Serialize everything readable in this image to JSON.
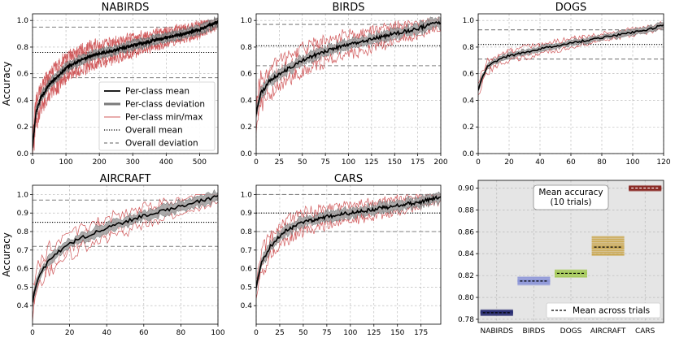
{
  "chart_data": [
    {
      "id": "nabirds",
      "type": "line",
      "title": "NABIRDS",
      "xlabel": "",
      "ylabel": "Accuracy",
      "xlim": [
        0,
        555
      ],
      "ylim": [
        0,
        1.05
      ],
      "xticks": [
        0,
        100,
        200,
        300,
        400,
        500
      ],
      "yticks": [
        0.0,
        0.2,
        0.4,
        0.6,
        0.8,
        1.0
      ],
      "grid": true,
      "n_classes": 555,
      "mean_curve": {
        "x": [
          0,
          10,
          25,
          50,
          100,
          150,
          200,
          250,
          300,
          350,
          400,
          450,
          500,
          555
        ],
        "y": [
          0.05,
          0.3,
          0.42,
          0.52,
          0.64,
          0.71,
          0.75,
          0.78,
          0.81,
          0.84,
          0.87,
          0.9,
          0.93,
          0.99
        ]
      },
      "deviation_band": 0.03,
      "minmax_spread": 0.12,
      "overall_mean": 0.76,
      "overall_deviation": [
        0.57,
        0.95
      ],
      "legend": {
        "location": "center-right",
        "entries": [
          "Per-class mean",
          "Per-class deviation",
          "Per-class min/max",
          "Overall mean",
          "Overall deviation"
        ]
      }
    },
    {
      "id": "birds",
      "type": "line",
      "title": "BIRDS",
      "xlabel": "",
      "ylabel": "",
      "xlim": [
        0,
        200
      ],
      "ylim": [
        0,
        1.05
      ],
      "xticks": [
        0,
        25,
        50,
        75,
        100,
        125,
        150,
        175,
        200
      ],
      "yticks": [
        0.0,
        0.2,
        0.4,
        0.6,
        0.8,
        1.0
      ],
      "grid": true,
      "n_classes": 200,
      "mean_curve": {
        "x": [
          0,
          5,
          15,
          30,
          50,
          75,
          100,
          125,
          150,
          175,
          200
        ],
        "y": [
          0.3,
          0.45,
          0.55,
          0.62,
          0.7,
          0.77,
          0.82,
          0.86,
          0.9,
          0.94,
          0.99
        ]
      },
      "deviation_band": 0.035,
      "minmax_spread": 0.14,
      "overall_mean": 0.81,
      "overall_deviation": [
        0.66,
        0.97
      ]
    },
    {
      "id": "dogs",
      "type": "line",
      "title": "DOGS",
      "xlabel": "",
      "ylabel": "",
      "xlim": [
        0,
        120
      ],
      "ylim": [
        0,
        1.05
      ],
      "xticks": [
        0,
        20,
        40,
        60,
        80,
        100,
        120
      ],
      "yticks": [
        0.0,
        0.2,
        0.4,
        0.6,
        0.8,
        1.0
      ],
      "grid": true,
      "n_classes": 120,
      "mean_curve": {
        "x": [
          0,
          2,
          6,
          15,
          30,
          50,
          70,
          90,
          110,
          120
        ],
        "y": [
          0.48,
          0.55,
          0.65,
          0.72,
          0.76,
          0.81,
          0.85,
          0.89,
          0.93,
          0.97
        ]
      },
      "deviation_band": 0.02,
      "minmax_spread": 0.06,
      "overall_mean": 0.82,
      "overall_deviation": [
        0.71,
        0.93
      ]
    },
    {
      "id": "aircraft",
      "type": "line",
      "title": "AIRCRAFT",
      "xlabel": "",
      "ylabel": "Accuracy",
      "xlim": [
        0,
        100
      ],
      "ylim": [
        0.3,
        1.05
      ],
      "xticks": [
        0,
        20,
        40,
        60,
        80,
        100
      ],
      "yticks": [
        0.4,
        0.5,
        0.6,
        0.7,
        0.8,
        0.9,
        1.0
      ],
      "grid": true,
      "n_classes": 100,
      "mean_curve": {
        "x": [
          0,
          3,
          8,
          15,
          25,
          40,
          55,
          70,
          85,
          100
        ],
        "y": [
          0.42,
          0.55,
          0.63,
          0.7,
          0.76,
          0.82,
          0.87,
          0.91,
          0.95,
          0.99
        ]
      },
      "deviation_band": 0.025,
      "minmax_spread": 0.09,
      "overall_mean": 0.85,
      "overall_deviation": [
        0.72,
        0.97
      ]
    },
    {
      "id": "cars",
      "type": "line",
      "title": "CARS",
      "xlabel": "",
      "ylabel": "",
      "xlim": [
        0,
        196
      ],
      "ylim": [
        0.3,
        1.05
      ],
      "xticks": [
        0,
        25,
        50,
        75,
        100,
        125,
        150,
        175
      ],
      "yticks": [
        0.4,
        0.5,
        0.6,
        0.7,
        0.8,
        0.9,
        1.0
      ],
      "grid": true,
      "n_classes": 196,
      "mean_curve": {
        "x": [
          0,
          5,
          15,
          30,
          50,
          75,
          100,
          125,
          150,
          175,
          196
        ],
        "y": [
          0.5,
          0.62,
          0.72,
          0.8,
          0.85,
          0.88,
          0.9,
          0.92,
          0.94,
          0.96,
          0.99
        ]
      },
      "deviation_band": 0.025,
      "minmax_spread": 0.08,
      "overall_mean": 0.9,
      "overall_deviation": [
        0.8,
        1.0
      ]
    },
    {
      "id": "mean-accuracy",
      "type": "bar",
      "title": "",
      "annotation_lines": [
        "Mean accuracy",
        "(10 trials)"
      ],
      "xlabel": "",
      "ylabel": "",
      "ylim": [
        0.777,
        0.907
      ],
      "yticks": [
        0.78,
        0.8,
        0.82,
        0.84,
        0.86,
        0.88,
        0.9
      ],
      "grid": true,
      "categories": [
        "NABIRDS",
        "BIRDS",
        "DOGS",
        "AIRCRAFT",
        "CARS"
      ],
      "mean_across_trials": [
        0.786,
        0.815,
        0.822,
        0.846,
        0.9
      ],
      "trials": [
        [
          0.784,
          0.785,
          0.7855,
          0.786,
          0.786,
          0.7865,
          0.787,
          0.7875,
          0.788,
          0.786
        ],
        [
          0.812,
          0.813,
          0.814,
          0.8145,
          0.815,
          0.8155,
          0.816,
          0.817,
          0.818,
          0.815
        ],
        [
          0.819,
          0.82,
          0.821,
          0.8215,
          0.822,
          0.8225,
          0.823,
          0.824,
          0.8245,
          0.822
        ],
        [
          0.839,
          0.841,
          0.843,
          0.845,
          0.846,
          0.847,
          0.849,
          0.851,
          0.853,
          0.855
        ],
        [
          0.898,
          0.8985,
          0.899,
          0.8995,
          0.9,
          0.9005,
          0.901,
          0.9015,
          0.899,
          0.9
        ]
      ],
      "colors": [
        "#2b2f72",
        "#8c96d8",
        "#a5c95a",
        "#c9a447",
        "#8a2a25"
      ],
      "legend": {
        "location": "bottom-right",
        "entries": [
          "Mean across trials"
        ]
      }
    }
  ],
  "colors": {
    "mean_line": "#000000",
    "deviation_fill": "#9e9e9e",
    "deviation_edge": "#6e6e6e",
    "minmax_line": "#d0595b",
    "overall_deviation_line": "#7f7f7f",
    "bar_panel_background": "#e5e5e5"
  }
}
